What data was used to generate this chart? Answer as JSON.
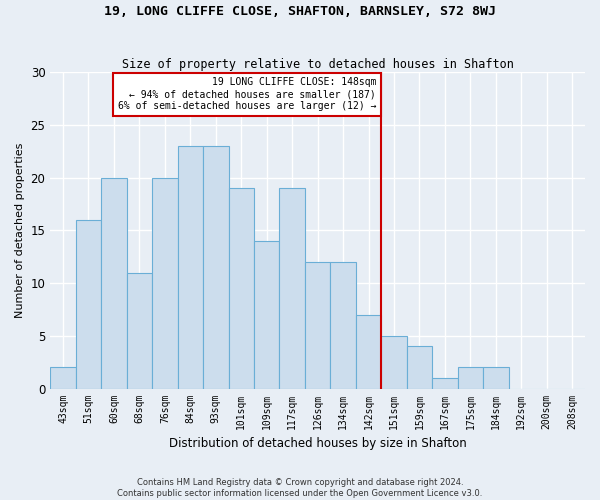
{
  "title": "19, LONG CLIFFE CLOSE, SHAFTON, BARNSLEY, S72 8WJ",
  "subtitle": "Size of property relative to detached houses in Shafton",
  "xlabel": "Distribution of detached houses by size in Shafton",
  "ylabel": "Number of detached properties",
  "footnote1": "Contains HM Land Registry data © Crown copyright and database right 2024.",
  "footnote2": "Contains public sector information licensed under the Open Government Licence v3.0.",
  "categories": [
    "43sqm",
    "51sqm",
    "60sqm",
    "68sqm",
    "76sqm",
    "84sqm",
    "93sqm",
    "101sqm",
    "109sqm",
    "117sqm",
    "126sqm",
    "134sqm",
    "142sqm",
    "151sqm",
    "159sqm",
    "167sqm",
    "175sqm",
    "184sqm",
    "192sqm",
    "200sqm",
    "208sqm"
  ],
  "values": [
    2,
    16,
    20,
    11,
    20,
    23,
    23,
    19,
    14,
    19,
    12,
    12,
    7,
    5,
    4,
    1,
    2,
    2,
    0,
    0,
    0
  ],
  "bar_color": "#ccdded",
  "bar_edge_color": "#6aaed6",
  "background_color": "#e8eef5",
  "grid_color": "#ffffff",
  "vline_x_index": 13,
  "vline_color": "#cc0000",
  "annotation_box_text": "19 LONG CLIFFE CLOSE: 148sqm\n← 94% of detached houses are smaller (187)\n6% of semi-detached houses are larger (12) →",
  "annotation_box_color": "#cc0000",
  "ylim": [
    0,
    30
  ],
  "yticks": [
    0,
    5,
    10,
    15,
    20,
    25,
    30
  ]
}
